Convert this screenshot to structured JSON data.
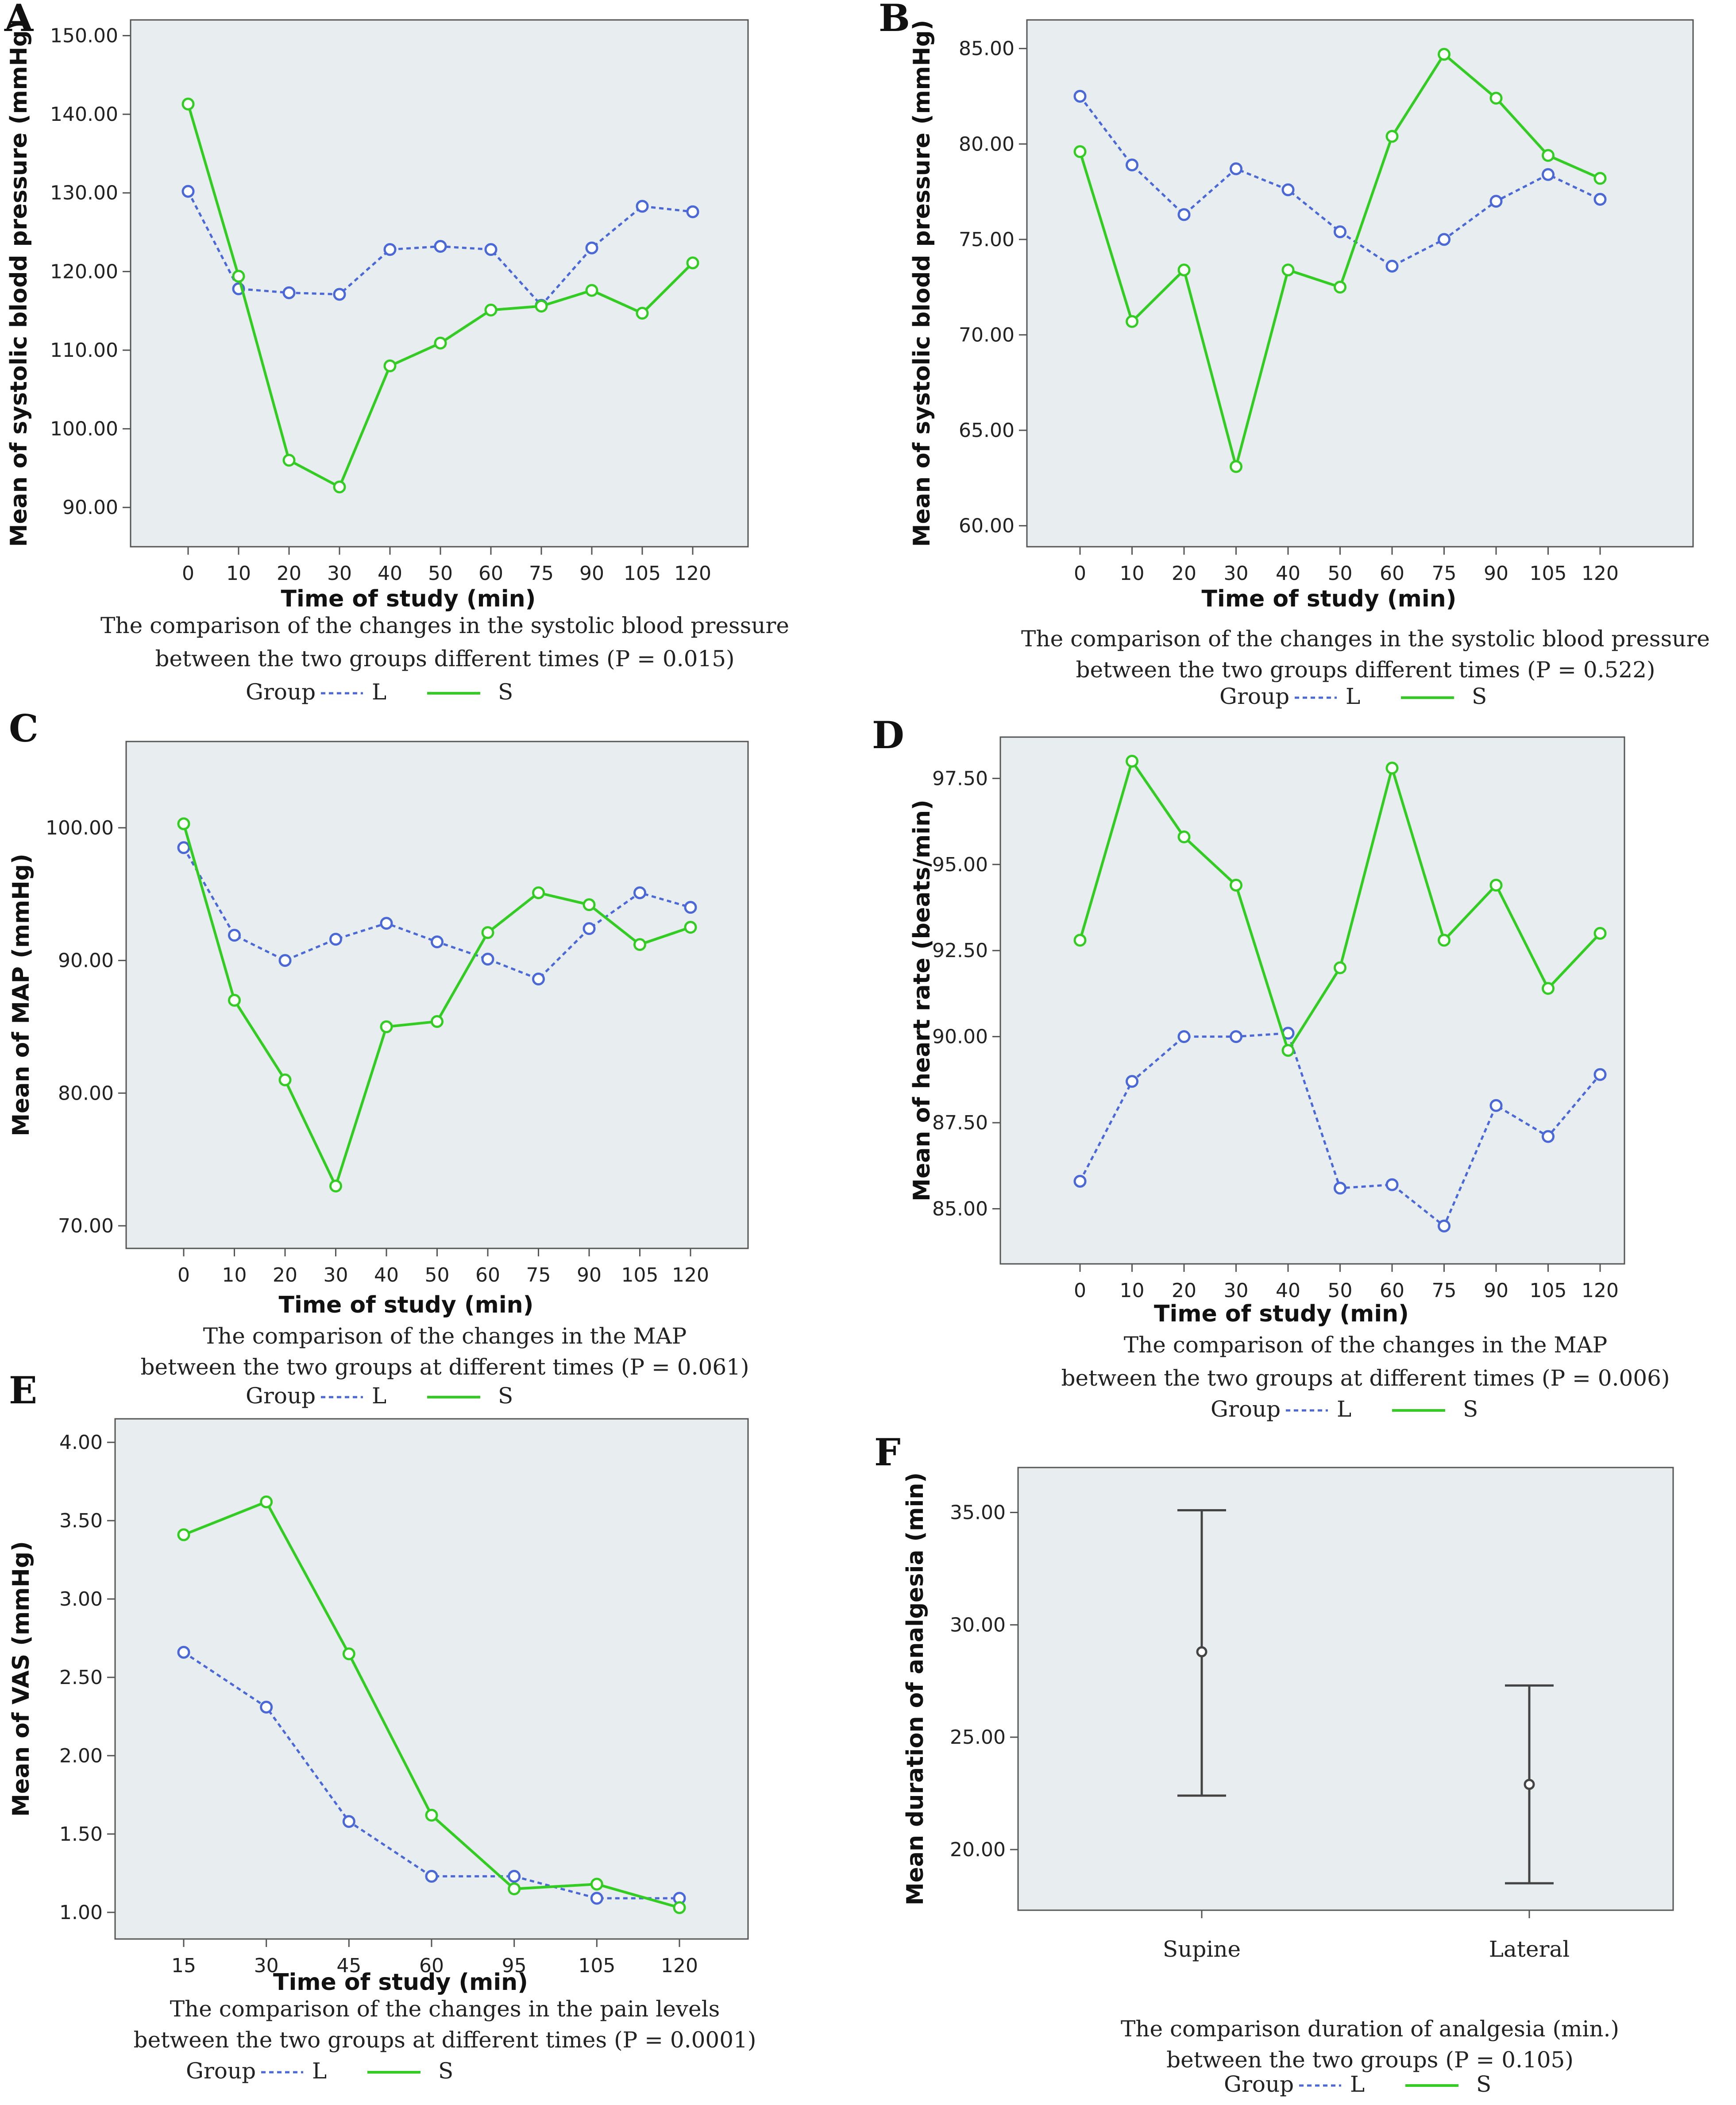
{
  "colors": {
    "L": "#4a68d8",
    "S": "#33cc22",
    "errorbar": "#444444"
  },
  "legend": {
    "group_label": "Group",
    "l_label": "L",
    "s_label": "S"
  },
  "chart_data": [
    {
      "id": "A",
      "type": "line",
      "letter": "A",
      "xlabel": "Time of study (min)",
      "ylabel": "Mean of systolic blodd pressure (mmHg)",
      "categories": [
        "0",
        "10",
        "20",
        "30",
        "40",
        "50",
        "60",
        "75",
        "90",
        "105",
        "120"
      ],
      "yticks": [
        "90.00",
        "100.00",
        "110.00",
        "120.00",
        "130.00",
        "140.00",
        "150.00"
      ],
      "ylim": [
        85,
        152
      ],
      "series": [
        {
          "name": "L",
          "values": [
            130.2,
            117.8,
            117.3,
            117.1,
            122.8,
            123.2,
            122.8,
            115.7,
            123.0,
            128.3,
            127.6
          ]
        },
        {
          "name": "S",
          "values": [
            141.3,
            119.4,
            96.0,
            92.6,
            108.0,
            110.9,
            115.1,
            115.6,
            117.6,
            114.7,
            121.1
          ]
        }
      ],
      "caption_line1": "The comparison of the changes in the systolic blood pressure",
      "caption_line2": "between the two groups different times (P = 0.015)"
    },
    {
      "id": "B",
      "type": "line",
      "letter": "B",
      "xlabel": "Time of study (min)",
      "ylabel": "Mean of systolic blodd pressure (mmHg)",
      "categories": [
        "0",
        "10",
        "20",
        "30",
        "40",
        "50",
        "60",
        "75",
        "90",
        "105",
        "120"
      ],
      "yticks": [
        "60.00",
        "65.00",
        "70.00",
        "75.00",
        "80.00",
        "85.00"
      ],
      "ylim": [
        58.9,
        86.5
      ],
      "series": [
        {
          "name": "L",
          "values": [
            82.5,
            78.9,
            76.3,
            78.7,
            77.6,
            75.4,
            73.6,
            75.0,
            77.0,
            78.4,
            77.1
          ]
        },
        {
          "name": "S",
          "values": [
            79.6,
            70.7,
            73.4,
            63.1,
            73.4,
            72.5,
            80.4,
            84.7,
            82.4,
            79.4,
            78.2
          ]
        }
      ],
      "caption_line1": "The comparison of the changes in the systolic blood pressure",
      "caption_line2": "between the two groups different times (P = 0.522)"
    },
    {
      "id": "C",
      "type": "line",
      "letter": "C",
      "xlabel": "Time of study (min)",
      "ylabel": "Mean of MAP (mmHg)",
      "categories": [
        "0",
        "10",
        "20",
        "30",
        "40",
        "50",
        "60",
        "75",
        "90",
        "105",
        "120"
      ],
      "yticks": [
        "70.00",
        "80.00",
        "90.00",
        "100.00"
      ],
      "ylim": [
        68.3,
        106.5
      ],
      "series": [
        {
          "name": "L",
          "values": [
            98.5,
            91.9,
            90.0,
            91.6,
            92.8,
            91.4,
            90.1,
            88.6,
            92.4,
            95.1,
            94.0
          ]
        },
        {
          "name": "S",
          "values": [
            100.3,
            87.0,
            81.0,
            73.0,
            85.0,
            85.4,
            92.1,
            95.1,
            94.2,
            91.2,
            92.5
          ]
        }
      ],
      "caption_line1": "The comparison of the changes in the MAP",
      "caption_line2": "between the two groups at different times (P = 0.061)"
    },
    {
      "id": "D",
      "type": "line",
      "letter": "D",
      "xlabel": "Time of study (min)",
      "ylabel": "Mean of heart rate (beats/min)",
      "categories": [
        "0",
        "10",
        "20",
        "30",
        "40",
        "50",
        "60",
        "75",
        "90",
        "105",
        "120"
      ],
      "yticks": [
        "85.00",
        "87.50",
        "90.00",
        "92.50",
        "95.00",
        "97.50"
      ],
      "ylim": [
        83.4,
        98.7
      ],
      "series": [
        {
          "name": "L",
          "values": [
            85.8,
            88.7,
            90.0,
            90.0,
            90.1,
            85.6,
            85.7,
            84.5,
            88.0,
            87.1,
            88.9
          ]
        },
        {
          "name": "S",
          "values": [
            92.8,
            98.0,
            95.8,
            94.4,
            89.6,
            92.0,
            97.8,
            92.8,
            94.4,
            91.4,
            93.0
          ]
        }
      ],
      "caption_line1": "The comparison of the changes in the MAP",
      "caption_line2": "between the two groups at different times (P = 0.006)"
    },
    {
      "id": "E",
      "type": "line",
      "letter": "E",
      "xlabel": "Time of study (min)",
      "ylabel": "Mean of VAS (mmHg)",
      "categories": [
        "15",
        "30",
        "45",
        "60",
        "95",
        "105",
        "120"
      ],
      "yticks": [
        "1.00",
        "1.50",
        "2.00",
        "2.50",
        "3.00",
        "3.50",
        "4.00"
      ],
      "ylim": [
        0.83,
        4.15
      ],
      "series": [
        {
          "name": "L",
          "values": [
            2.66,
            2.31,
            1.58,
            1.23,
            1.23,
            1.09,
            1.09
          ]
        },
        {
          "name": "S",
          "values": [
            3.41,
            3.62,
            2.65,
            1.62,
            1.15,
            1.18,
            1.03
          ]
        }
      ],
      "caption_line1": "The comparison of the changes in the pain levels",
      "caption_line2": "between the two groups at different times (P = 0.0001)"
    },
    {
      "id": "F",
      "type": "errorbar",
      "letter": "F",
      "xlabel": "",
      "ylabel": "Mean duration of analgesia (min)",
      "categories": [
        "Supine",
        "Lateral"
      ],
      "yticks": [
        "20.00",
        "25.00",
        "30.00",
        "35.00"
      ],
      "ylim": [
        17.3,
        37.0
      ],
      "means": [
        28.8,
        22.9
      ],
      "lower": [
        22.4,
        18.5
      ],
      "upper": [
        35.1,
        27.3
      ],
      "caption_line1": "The comparison duration of analgesia (min.)",
      "caption_line2": "between the two groups (P = 0.105)"
    }
  ]
}
